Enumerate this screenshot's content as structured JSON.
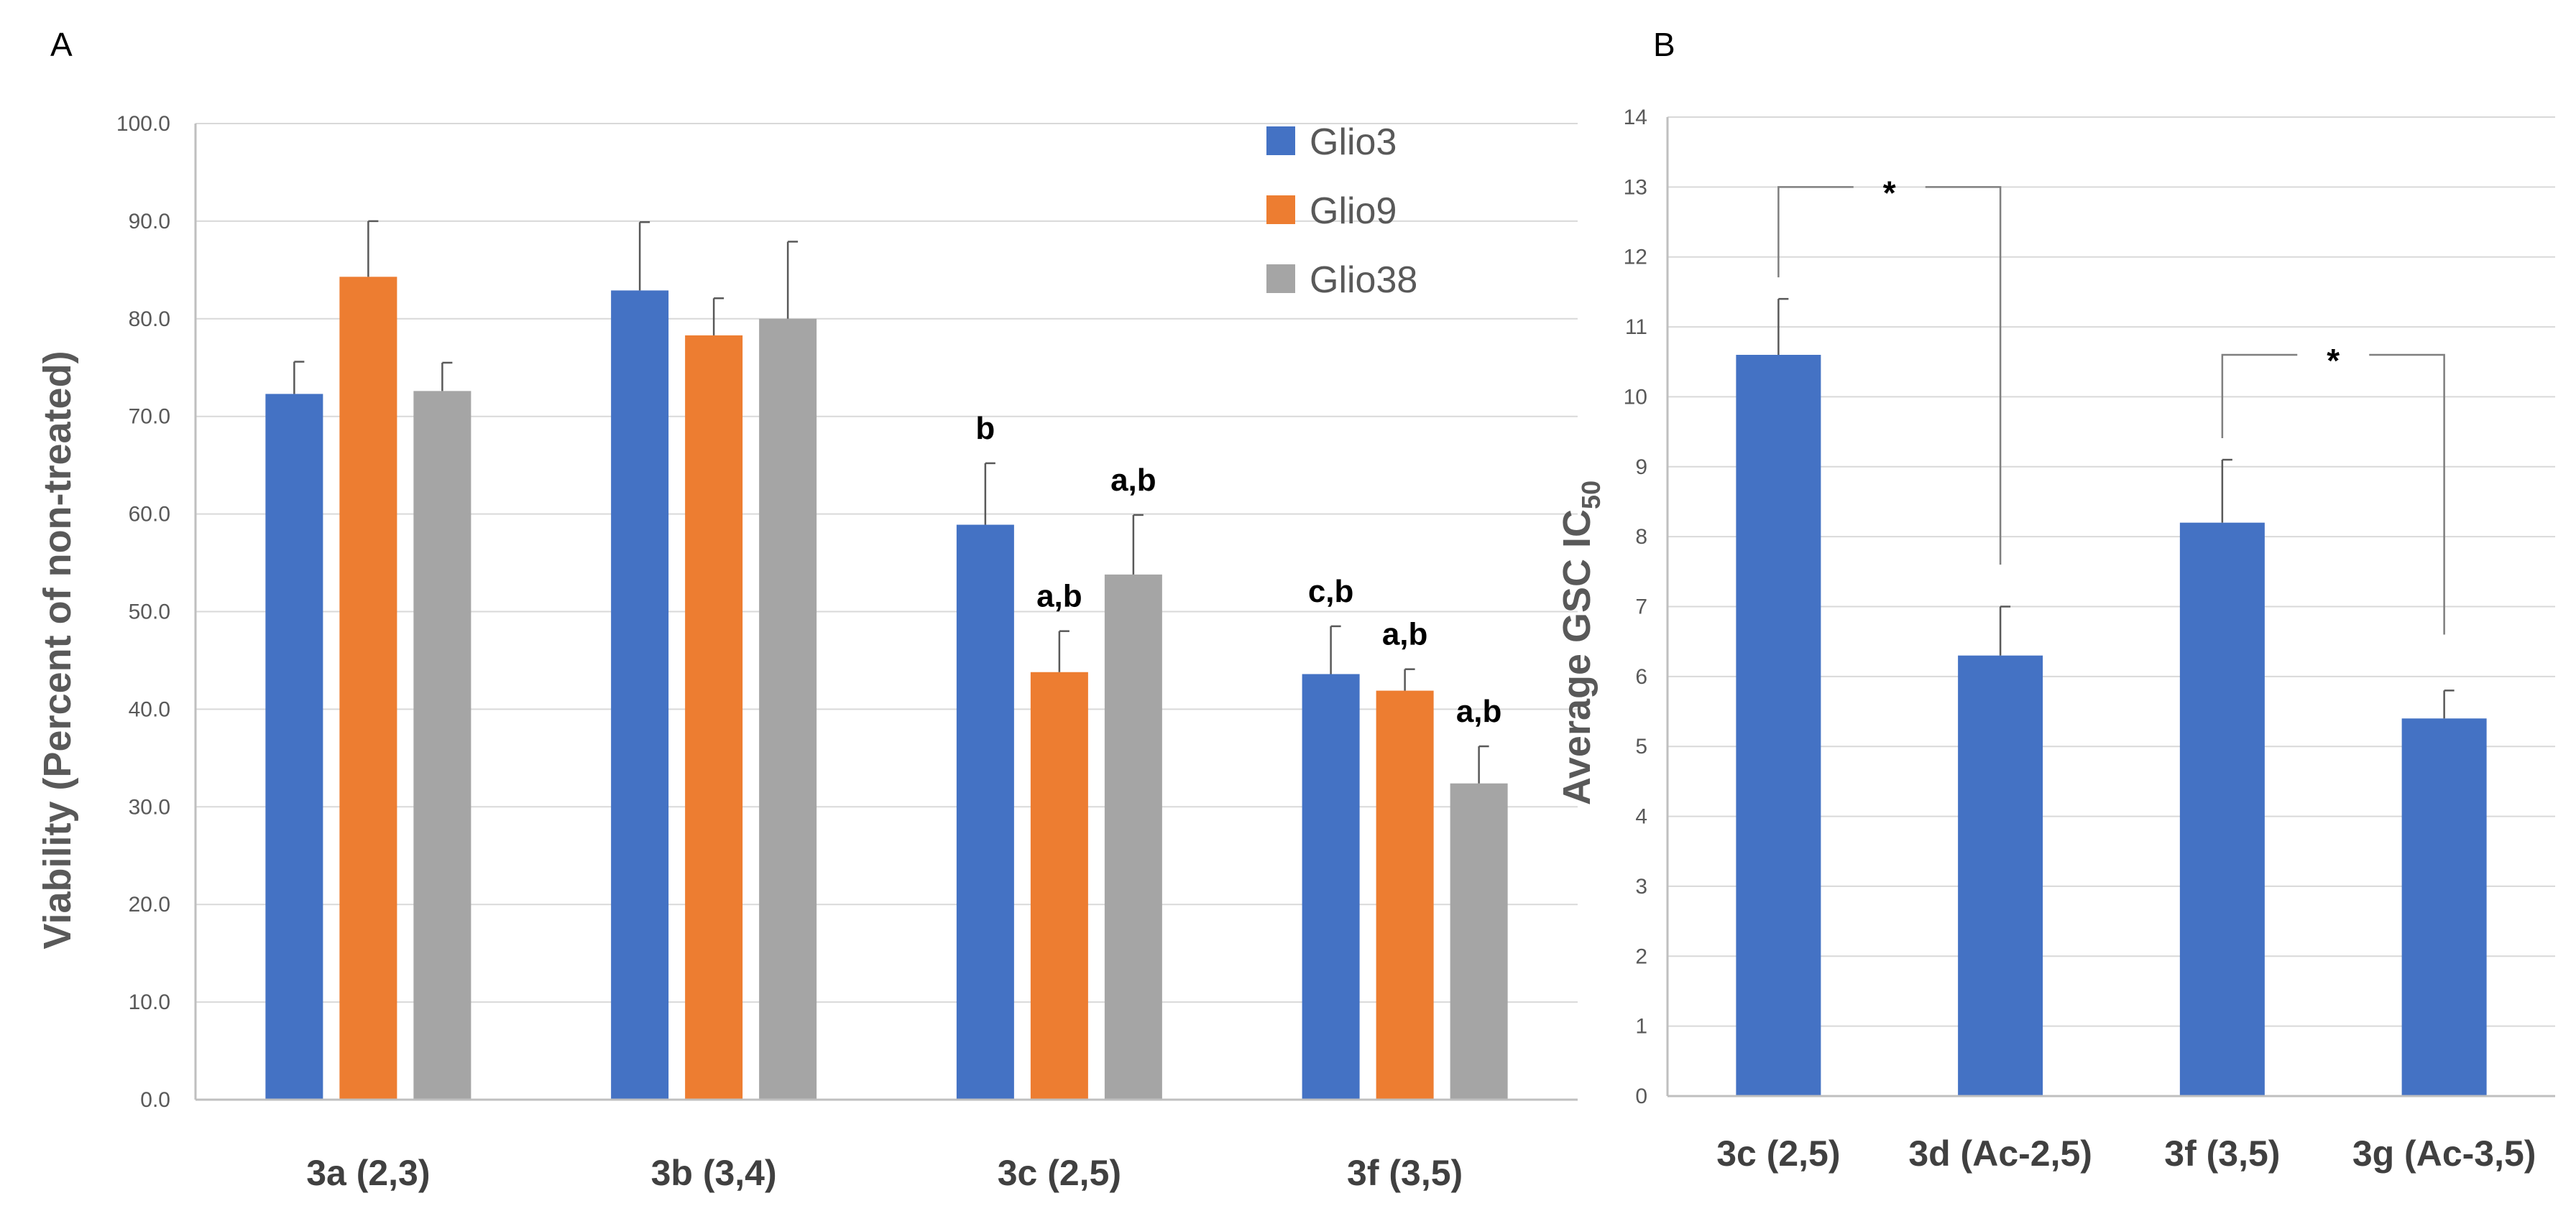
{
  "panels": {
    "a": {
      "letter": "A",
      "chart_data": {
        "type": "bar",
        "title": "",
        "xlabel": "",
        "ylabel": "Viability (Percent of non-treated)",
        "ylim": [
          0,
          100
        ],
        "y_ticks": [
          "0.0",
          "10.0",
          "20.0",
          "30.0",
          "40.0",
          "50.0",
          "60.0",
          "70.0",
          "80.0",
          "90.0",
          "100.0"
        ],
        "grid": true,
        "legend_position": "top-right",
        "categories": [
          "3a (2,3)",
          "3b (3,4)",
          "3c (2,5)",
          "3f (3,5)"
        ],
        "series": [
          {
            "name": "Glio3",
            "color": "#4472C4",
            "values": [
              72.3,
              82.9,
              58.9,
              43.6
            ],
            "errors": [
              3.3,
              7.0,
              6.3,
              4.9
            ],
            "labels": [
              "",
              "",
              "b",
              "c,b"
            ]
          },
          {
            "name": "Glio9",
            "color": "#ED7D31",
            "values": [
              84.3,
              78.3,
              43.8,
              41.9
            ],
            "errors": [
              5.7,
              3.8,
              4.2,
              2.2
            ],
            "labels": [
              "",
              "",
              "a,b",
              "a,b"
            ]
          },
          {
            "name": "Glio38",
            "color": "#A5A5A5",
            "values": [
              72.6,
              80.0,
              53.8,
              32.4
            ],
            "errors": [
              2.9,
              7.9,
              6.1,
              3.8
            ],
            "labels": [
              "",
              "",
              "a,b",
              "a,b"
            ]
          }
        ]
      }
    },
    "b": {
      "letter": "B",
      "chart_data": {
        "type": "bar",
        "title": "",
        "xlabel": "",
        "ylabel": "Average GSC IC",
        "ylabel_subscript": "50",
        "ylim": [
          0,
          14
        ],
        "y_ticks": [
          "0",
          "1",
          "2",
          "3",
          "4",
          "5",
          "6",
          "7",
          "8",
          "9",
          "10",
          "11",
          "12",
          "13",
          "14"
        ],
        "grid": true,
        "categories": [
          "3c (2,5)",
          "3d (Ac-2,5)",
          "3f (3,5)",
          "3g (Ac-3,5)"
        ],
        "series": [
          {
            "name": "Average GSC IC50",
            "color": "#4472C4",
            "values": [
              10.6,
              6.3,
              8.2,
              5.4
            ],
            "errors": [
              0.8,
              0.7,
              0.9,
              0.4
            ]
          }
        ],
        "significance": [
          {
            "from": 0,
            "to": 1,
            "label": "*",
            "y": 13.0
          },
          {
            "from": 2,
            "to": 3,
            "label": "*",
            "y": 10.6
          }
        ]
      }
    }
  }
}
